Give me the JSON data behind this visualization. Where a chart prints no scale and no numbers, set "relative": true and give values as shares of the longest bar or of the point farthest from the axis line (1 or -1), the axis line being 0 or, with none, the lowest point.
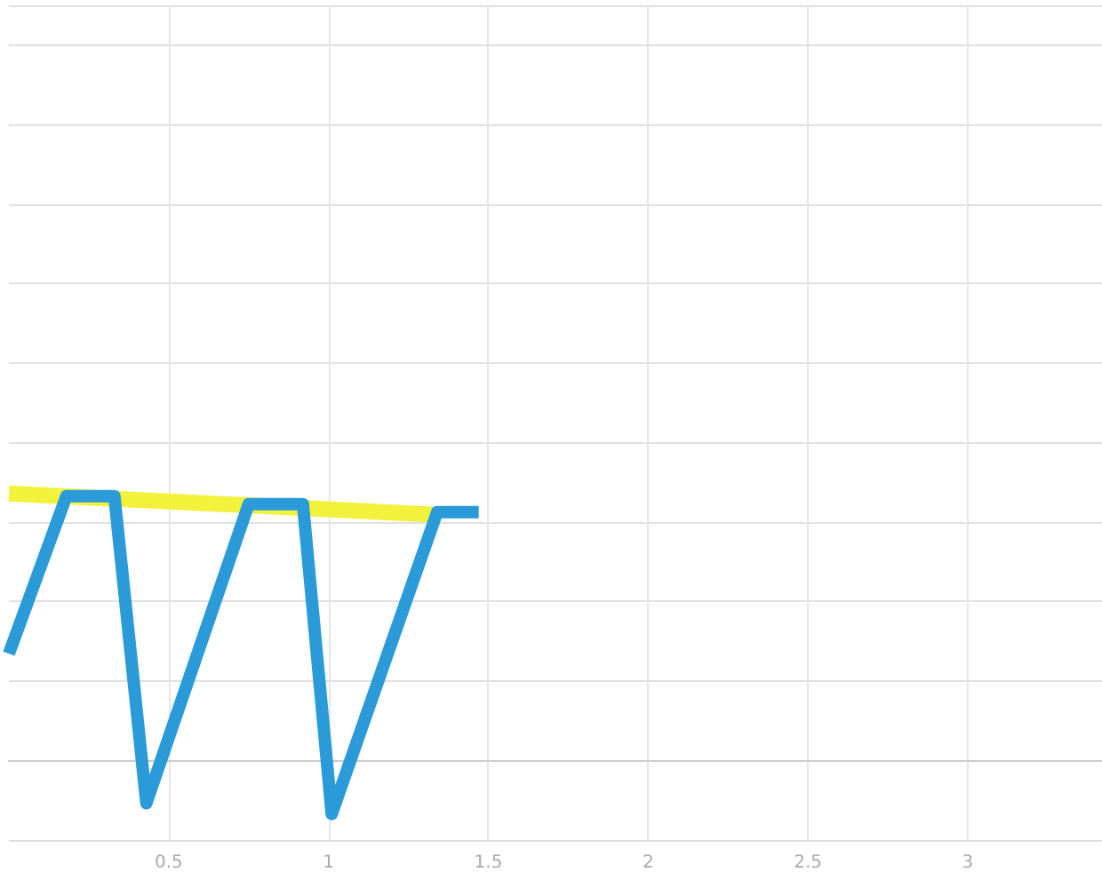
{
  "chart_data": {
    "type": "line",
    "relative": true,
    "xlim": [
      0,
      3.42
    ],
    "xticks": [
      0.5,
      1,
      1.5,
      2,
      2.5,
      3
    ],
    "grid": true,
    "marker": "none",
    "line_style": "solid",
    "series": [
      {
        "color": "#f2f23c",
        "x": [
          0,
          1.34
        ],
        "values": [
          1.0,
          0.92
        ]
      },
      {
        "color": "#2a9bd8",
        "x": [
          0,
          0.18,
          0.33,
          0.43,
          0.75,
          0.92,
          1.01,
          1.34,
          1.47
        ],
        "values": [
          0.4,
          0.99,
          0.99,
          -0.16,
          0.96,
          0.96,
          -0.2,
          0.93,
          0.93
        ]
      }
    ]
  }
}
